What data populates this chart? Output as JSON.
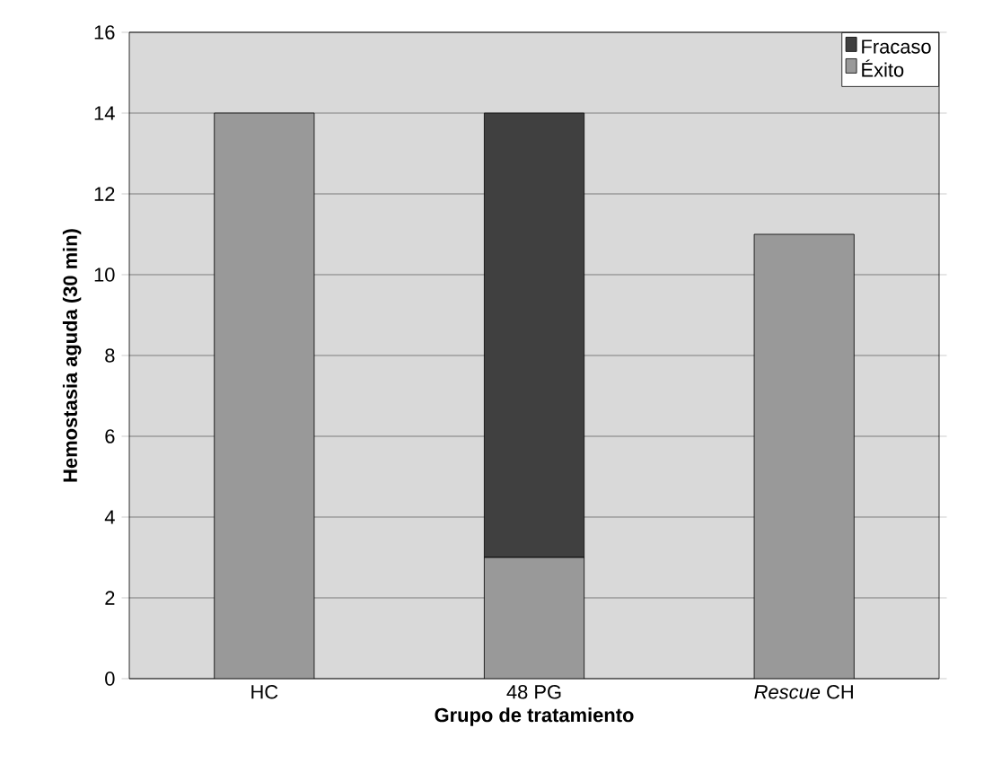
{
  "chart_data": {
    "type": "bar",
    "stacked": true,
    "xlabel": "Grupo de tratamiento",
    "ylabel": "Hemostasia aguda (30 min)",
    "categories": [
      "HC",
      "48 PG",
      "*Rescue* CH"
    ],
    "series": [
      {
        "name": "Éxito",
        "color": "#999999",
        "values": [
          14,
          3,
          11
        ]
      },
      {
        "name": "Fracaso",
        "color": "#404040",
        "values": [
          0,
          11,
          0
        ]
      }
    ],
    "ylim": [
      0,
      16
    ],
    "yticks": [
      0,
      2,
      4,
      6,
      8,
      10,
      12,
      14,
      16
    ],
    "grid": "y",
    "legend": "top right"
  }
}
